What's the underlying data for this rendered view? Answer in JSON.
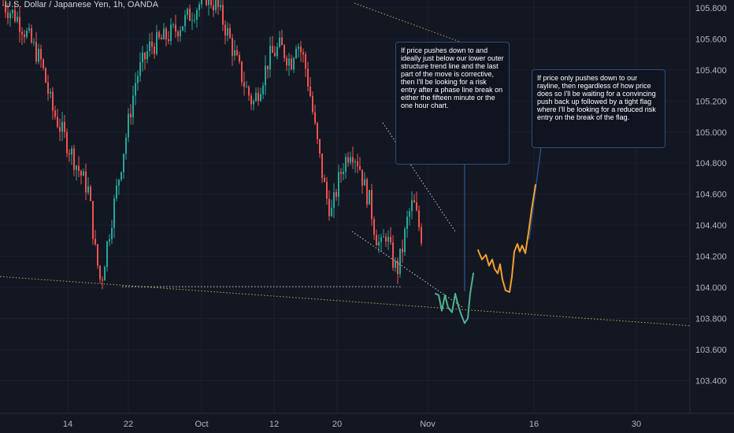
{
  "symbol_title": "U.S. Dollar / Japanese Yen, 1h, OANDA",
  "colors": {
    "background": "#131722",
    "bull": "#26a69a",
    "bear": "#ef5350",
    "trendline": "#c8a25a",
    "projection_green": "#4db391",
    "projection_orange": "#f4a02b",
    "callout_border": "#2a4f80",
    "axis_text": "#b2b5be"
  },
  "annotations": {
    "note_1": "If price pushes down to and ideally just below our lower outer structure trend line and the last part of the move is corrective, then I'll be looking for a risk entry after a phase line break on either the fifteen minute or the one hour chart.",
    "note_2": "If price only pushes down to our rayline, then regardless of how price does so I'll be waiting for a convincing push back up followed by a tight flag where I'll be looking for a reduced risk entry on the break of the flag."
  },
  "chart_data": {
    "type": "candlestick",
    "title": "U.S. Dollar / Japanese Yen, 1h, OANDA",
    "y_axis": {
      "position": "right",
      "ticks": [
        "105.800",
        "105.600",
        "105.400",
        "105.200",
        "105.000",
        "104.800",
        "104.600",
        "104.400",
        "104.200",
        "104.000",
        "103.800",
        "103.600",
        "103.400"
      ],
      "ylim": [
        103.23,
        105.83
      ]
    },
    "x_axis": {
      "ticks": [
        "14",
        "22",
        "Oct",
        "12",
        "20",
        "Nov",
        "16",
        "30"
      ]
    },
    "price_path": [
      {
        "x": 0,
        "y": 105.82
      },
      {
        "x": 10,
        "y": 105.74
      },
      {
        "x": 18,
        "y": 105.62
      },
      {
        "x": 28,
        "y": 105.45
      },
      {
        "x": 36,
        "y": 105.15
      },
      {
        "x": 46,
        "y": 104.95
      },
      {
        "x": 56,
        "y": 104.75
      },
      {
        "x": 63,
        "y": 104.62
      },
      {
        "x": 68,
        "y": 104.22
      },
      {
        "x": 72,
        "y": 104.02
      },
      {
        "x": 76,
        "y": 104.25
      },
      {
        "x": 82,
        "y": 104.55
      },
      {
        "x": 90,
        "y": 104.95
      },
      {
        "x": 98,
        "y": 105.35
      },
      {
        "x": 108,
        "y": 105.55
      },
      {
        "x": 118,
        "y": 105.6
      },
      {
        "x": 126,
        "y": 105.65
      },
      {
        "x": 134,
        "y": 105.72
      },
      {
        "x": 142,
        "y": 105.8
      },
      {
        "x": 150,
        "y": 105.88
      },
      {
        "x": 158,
        "y": 105.8
      },
      {
        "x": 166,
        "y": 105.62
      },
      {
        "x": 172,
        "y": 105.45
      },
      {
        "x": 178,
        "y": 105.3
      },
      {
        "x": 184,
        "y": 105.18
      },
      {
        "x": 190,
        "y": 105.32
      },
      {
        "x": 196,
        "y": 105.48
      },
      {
        "x": 204,
        "y": 105.55
      },
      {
        "x": 212,
        "y": 105.45
      },
      {
        "x": 216,
        "y": 105.6
      },
      {
        "x": 222,
        "y": 105.45
      },
      {
        "x": 226,
        "y": 105.25
      },
      {
        "x": 230,
        "y": 105.0
      },
      {
        "x": 234,
        "y": 104.78
      },
      {
        "x": 238,
        "y": 104.58
      },
      {
        "x": 242,
        "y": 104.48
      },
      {
        "x": 246,
        "y": 104.65
      },
      {
        "x": 250,
        "y": 104.78
      },
      {
        "x": 256,
        "y": 104.9
      },
      {
        "x": 262,
        "y": 104.8
      },
      {
        "x": 266,
        "y": 104.65
      },
      {
        "x": 270,
        "y": 104.55
      },
      {
        "x": 274,
        "y": 104.35
      },
      {
        "x": 278,
        "y": 104.25
      },
      {
        "x": 282,
        "y": 104.35
      },
      {
        "x": 286,
        "y": 104.2
      },
      {
        "x": 290,
        "y": 104.1
      },
      {
        "x": 294,
        "y": 104.25
      },
      {
        "x": 298,
        "y": 104.45
      },
      {
        "x": 302,
        "y": 104.55
      },
      {
        "x": 306,
        "y": 104.4
      },
      {
        "x": 309,
        "y": 104.3
      }
    ],
    "drawings": {
      "outer_trend_line": [
        {
          "x": 0,
          "y": 104.07
        },
        {
          "x": 940,
          "y": 103.73
        }
      ],
      "rayline_level": 104.005,
      "upper_outer_line_from": [
        {
          "x": 450,
          "y": 105.83
        },
        {
          "x": 590,
          "y": 105.57
        }
      ],
      "channel_upper": [
        {
          "x": 486,
          "y": 105.06
        },
        {
          "x": 578,
          "y": 104.36
        }
      ],
      "channel_lower": [
        {
          "x": 447,
          "y": 104.36
        },
        {
          "x": 588,
          "y": 103.87
        }
      ],
      "scenario_1_path": [
        {
          "x": 553,
          "y": 103.96
        },
        {
          "x": 557,
          "y": 103.95
        },
        {
          "x": 561,
          "y": 103.85
        },
        {
          "x": 565,
          "y": 103.95
        },
        {
          "x": 569,
          "y": 103.87
        },
        {
          "x": 574,
          "y": 103.84
        },
        {
          "x": 578,
          "y": 103.96
        },
        {
          "x": 582,
          "y": 103.88
        },
        {
          "x": 586,
          "y": 103.82
        },
        {
          "x": 590,
          "y": 103.77
        },
        {
          "x": 594,
          "y": 103.8
        },
        {
          "x": 597,
          "y": 103.96
        },
        {
          "x": 601,
          "y": 104.09
        }
      ],
      "scenario_2_path": [
        {
          "x": 607,
          "y": 104.24
        },
        {
          "x": 612,
          "y": 104.18
        },
        {
          "x": 617,
          "y": 104.21
        },
        {
          "x": 621,
          "y": 104.14
        },
        {
          "x": 625,
          "y": 104.18
        },
        {
          "x": 628,
          "y": 104.12
        },
        {
          "x": 632,
          "y": 104.09
        },
        {
          "x": 635,
          "y": 104.15
        },
        {
          "x": 638,
          "y": 104.05
        },
        {
          "x": 642,
          "y": 103.98
        },
        {
          "x": 647,
          "y": 103.97
        },
        {
          "x": 650,
          "y": 104.07
        },
        {
          "x": 653,
          "y": 104.23
        },
        {
          "x": 657,
          "y": 104.28
        },
        {
          "x": 660,
          "y": 104.23
        },
        {
          "x": 663,
          "y": 104.27
        },
        {
          "x": 667,
          "y": 104.22
        },
        {
          "x": 671,
          "y": 104.35
        },
        {
          "x": 675,
          "y": 104.5
        },
        {
          "x": 680,
          "y": 104.66
        }
      ]
    }
  }
}
